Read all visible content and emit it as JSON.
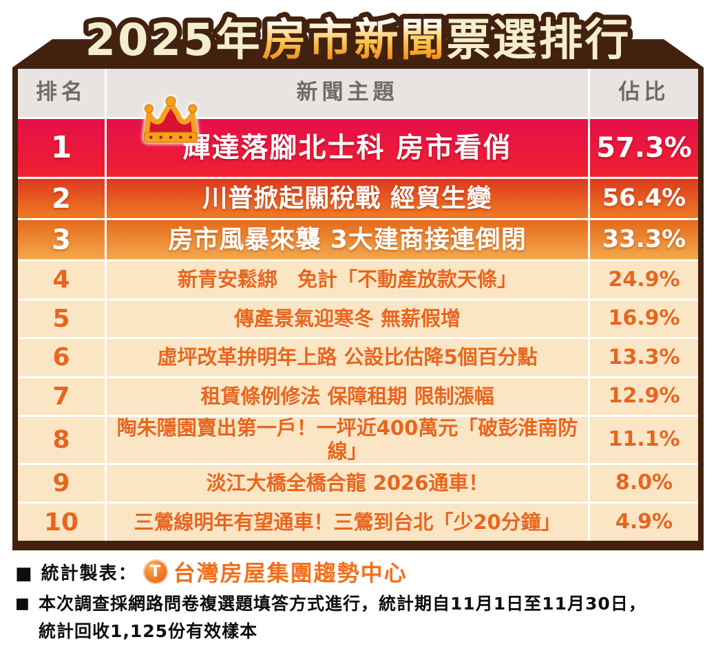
{
  "title": {
    "part1": "2025年",
    "part2": "房市新聞",
    "part3": "票選排行"
  },
  "table": {
    "headers": {
      "rank": "排名",
      "topic": "新聞主題",
      "share": "佔比"
    },
    "rows": [
      {
        "rank": "1",
        "topic": "輝達落腳北士科 房市看俏",
        "share": "57.3%"
      },
      {
        "rank": "2",
        "topic": "川普掀起關稅戰 經貿生變",
        "share": "56.4%"
      },
      {
        "rank": "3",
        "topic": "房市風暴來襲 3大建商接連倒閉",
        "share": "33.3%"
      },
      {
        "rank": "4",
        "topic": "新青安鬆綁　免計「不動產放款天條」",
        "share": "24.9%"
      },
      {
        "rank": "5",
        "topic": "傳產景氣迎寒冬 無薪假增",
        "share": "16.9%"
      },
      {
        "rank": "6",
        "topic": "虛坪改革拚明年上路 公設比估降5個百分點",
        "share": "13.3%"
      },
      {
        "rank": "7",
        "topic": "租賃條例修法 保障租期 限制漲幅",
        "share": "12.9%"
      },
      {
        "rank": "8",
        "topic": "陶朱隱園賣出第一戶！一坪近400萬元「破彭淮南防線」",
        "share": "11.1%"
      },
      {
        "rank": "9",
        "topic": "淡江大橋全橋合龍 2026通車！",
        "share": "8.0%"
      },
      {
        "rank": "10",
        "topic": "三鶯線明年有望通車！三鶯到台北「少20分鐘」",
        "share": "4.9%"
      }
    ]
  },
  "footer": {
    "source_label": "■ 統計製表：",
    "logo_letter": "T",
    "source_brand": "台灣房屋集團趨勢中心",
    "note_bullet": "■",
    "note_line1": "本次調查採網路問卷複選題填答方式進行，統計期自11月1日至11月30日，",
    "note_line2": "統計回收1,125份有效樣本"
  },
  "colors": {
    "frame_brown": "#42220F",
    "title_cream": "#F5EECD",
    "title_orange": "#F0820F",
    "header_bg": "#E7E4E1",
    "header_text": "#6D6C6A",
    "tier1_top": "#E41049",
    "tier1_bottom": "#F0212F",
    "tier2_top": "#DC3A1E",
    "tier2_bottom": "#F07B25",
    "tier3_top": "#E56A19",
    "tier3_bottom": "#F3A94E",
    "row_bg": "#FAE5C4",
    "row_text": "#E8651C",
    "brand_orange": "#F26F1B",
    "crown_gold": "#F2A21C",
    "crown_red": "#D81230"
  },
  "chart_data": {
    "type": "table",
    "title": "2025年房市新聞票選排行",
    "columns": [
      "排名",
      "新聞主題",
      "佔比"
    ],
    "categories": [
      "輝達落腳北士科 房市看俏",
      "川普掀起關稅戰 經貿生變",
      "房市風暴來襲 3大建商接連倒閉",
      "新青安鬆綁　免計「不動產放款天條」",
      "傳產景氣迎寒冬 無薪假增",
      "虛坪改革拚明年上路 公設比估降5個百分點",
      "租賃條例修法 保障租期 限制漲幅",
      "陶朱隱園賣出第一戶！一坪近400萬元「破彭淮南防線」",
      "淡江大橋全橋合龍 2026通車！",
      "三鶯線明年有望通車！三鶯到台北「少20分鐘」"
    ],
    "values": [
      57.3,
      56.4,
      33.3,
      24.9,
      16.9,
      13.3,
      12.9,
      11.1,
      8.0,
      4.9
    ],
    "unit": "%",
    "source": "台灣房屋集團趨勢中心",
    "notes": "本次調查採網路問卷複選題填答方式進行，統計期自11月1日至11月30日，統計回收1,125份有效樣本"
  }
}
